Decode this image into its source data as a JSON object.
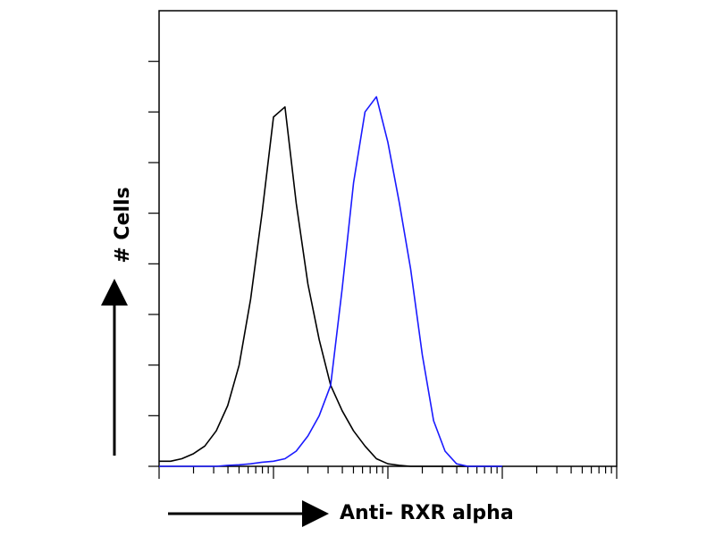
{
  "chart_data": {
    "type": "line",
    "y_label": "# Cells",
    "x_label": "Anti- RXR alpha",
    "x": [
      1,
      1.26,
      1.58,
      2,
      2.51,
      3.16,
      3.98,
      5.01,
      6.31,
      7.94,
      10,
      12.6,
      15.8,
      20,
      25.1,
      31.6,
      39.8,
      50.1,
      63.1,
      79.4,
      100,
      126,
      158,
      200,
      251,
      316,
      398,
      501,
      631,
      794,
      1000
    ],
    "series": [
      {
        "color": "#000000",
        "values": [
          0.1,
          0.1,
          0.15,
          0.25,
          0.4,
          0.7,
          1.2,
          2.0,
          3.3,
          5.0,
          6.9,
          7.1,
          5.2,
          3.6,
          2.5,
          1.6,
          1.1,
          0.7,
          0.4,
          0.15,
          0.05,
          0.02,
          0,
          0,
          0,
          0,
          0,
          0,
          0,
          0,
          0
        ]
      },
      {
        "color": "#1a1aff",
        "values": [
          0,
          0,
          0,
          0,
          0,
          0,
          0.02,
          0.03,
          0.05,
          0.08,
          0.1,
          0.15,
          0.3,
          0.6,
          1.0,
          1.6,
          3.5,
          5.6,
          7.0,
          7.3,
          6.4,
          5.2,
          3.9,
          2.2,
          0.9,
          0.3,
          0.05,
          0,
          0,
          0,
          0
        ]
      }
    ],
    "xlim": [
      1,
      10000
    ],
    "x_log": true,
    "xticks": [
      1,
      2,
      3,
      4,
      5,
      6,
      7,
      8,
      9,
      10,
      20,
      30,
      40,
      50,
      60,
      70,
      80,
      90,
      100,
      200,
      300,
      400,
      500,
      600,
      700,
      800,
      900,
      1000,
      2000,
      3000,
      4000,
      5000,
      6000,
      7000,
      8000,
      9000,
      10000
    ],
    "ylim": [
      0,
      9
    ],
    "yticks": [
      0,
      1,
      2,
      3,
      4,
      5,
      6,
      7,
      8
    ]
  }
}
